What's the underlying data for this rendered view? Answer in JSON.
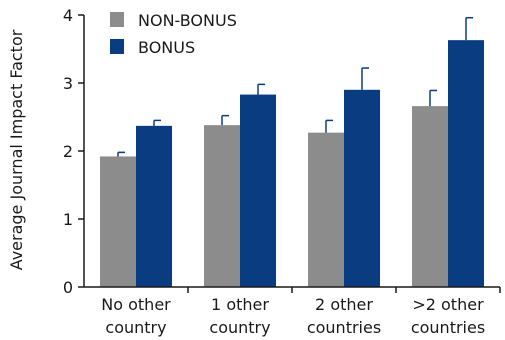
{
  "chart_data": {
    "type": "bar",
    "ylabel": "Average Journal Impact Factor",
    "ylim": [
      0,
      4
    ],
    "yticks": [
      "0",
      "1",
      "2",
      "3",
      "4"
    ],
    "categories": [
      [
        "No other",
        "country"
      ],
      [
        "1 other",
        "country"
      ],
      [
        "2 other",
        "countries"
      ],
      [
        ">2 other",
        "countries"
      ]
    ],
    "series": [
      {
        "name": "NON-BONUS",
        "color": "#8c8c8c",
        "values": [
          1.92,
          2.38,
          2.27,
          2.66
        ],
        "errors": [
          0.06,
          0.14,
          0.18,
          0.23
        ]
      },
      {
        "name": "BONUS",
        "color": "#0a3c82",
        "values": [
          2.37,
          2.83,
          2.9,
          3.63
        ],
        "errors": [
          0.08,
          0.15,
          0.32,
          0.33
        ]
      }
    ],
    "legend_position": "top-left",
    "grid": false,
    "error_bar_color": "#0a3c82"
  }
}
